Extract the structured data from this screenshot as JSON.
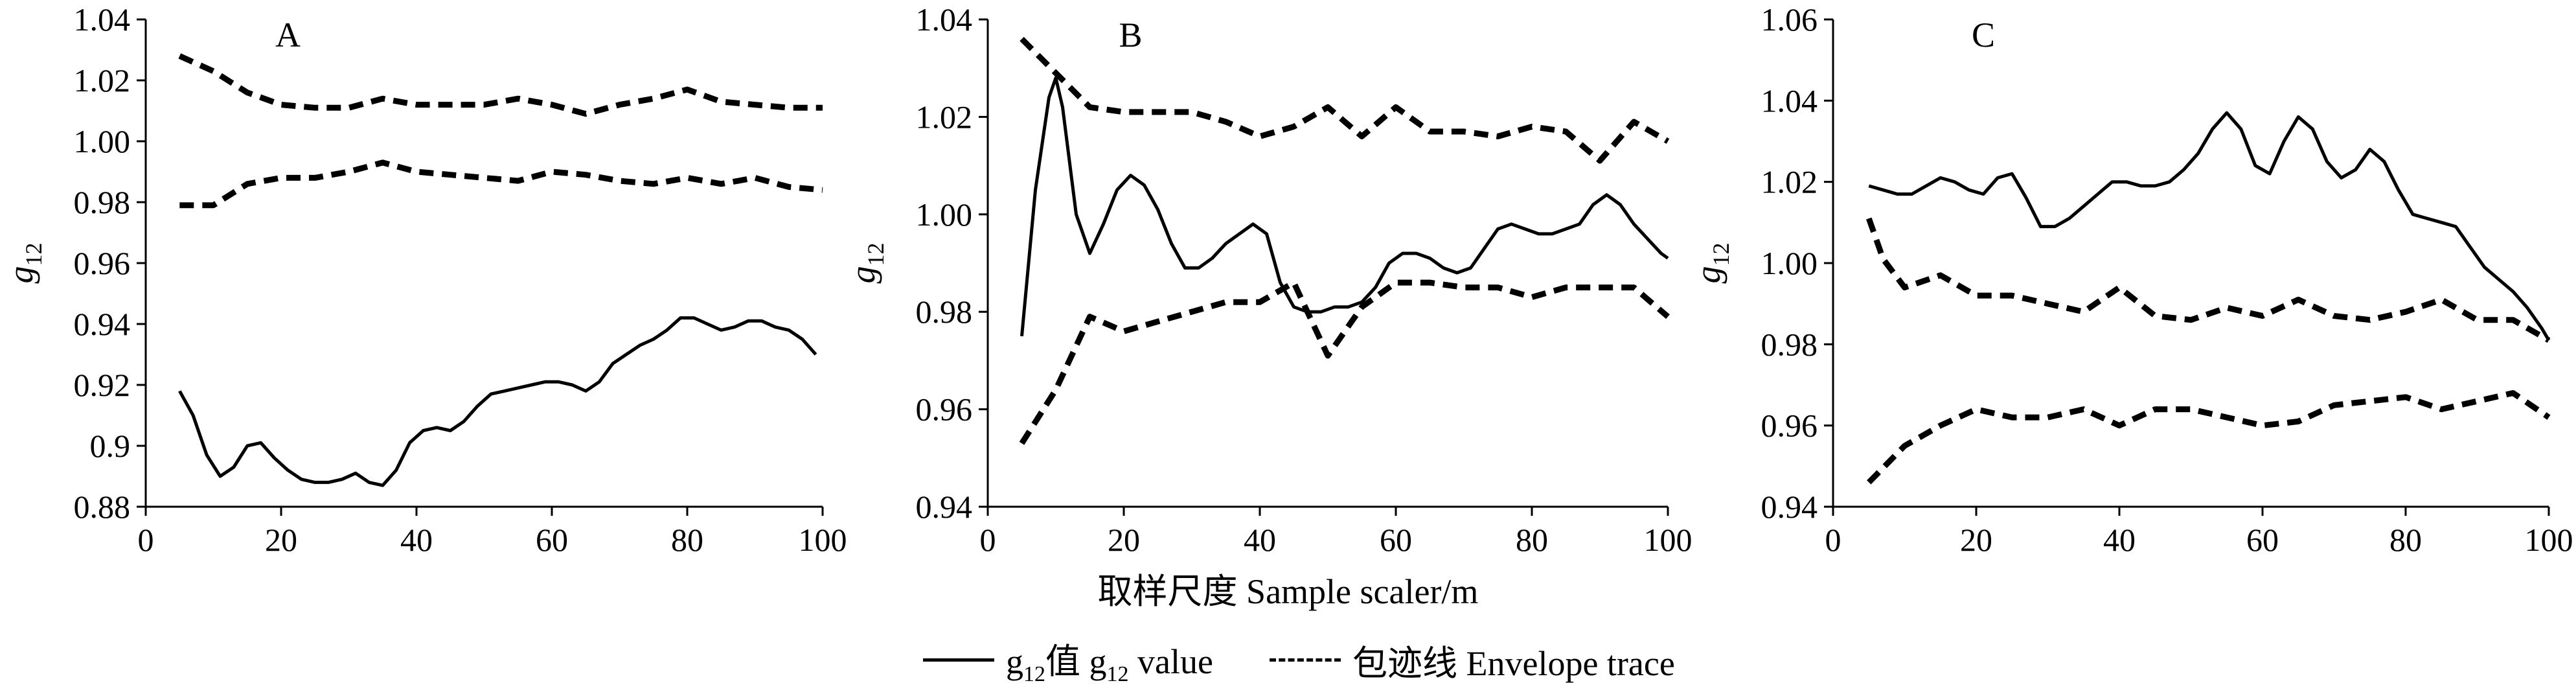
{
  "figure": {
    "xlabel": "取样尺度  Sample scaler/m",
    "legend": [
      {
        "name": "g12值  g12 value",
        "style": "solid"
      },
      {
        "name": "包迹线  Envelope trace",
        "style": "dashed"
      }
    ]
  },
  "chart_data": [
    {
      "type": "line",
      "panel_label": "A",
      "ylabel": "g12",
      "xlim": [
        0,
        100
      ],
      "ylim": [
        0.88,
        1.04
      ],
      "xticks": [
        0,
        20,
        40,
        60,
        80,
        100
      ],
      "yticks": [
        "0.88",
        "0.9",
        "0.92",
        "0.94",
        "0.96",
        "0.98",
        "1.00",
        "1.02",
        "1.04"
      ],
      "series": [
        {
          "name": "g12 value",
          "style": "solid",
          "x": [
            5,
            7,
            9,
            11,
            13,
            15,
            17,
            19,
            21,
            23,
            25,
            27,
            29,
            31,
            33,
            35,
            37,
            39,
            41,
            43,
            45,
            47,
            49,
            51,
            53,
            55,
            57,
            59,
            61,
            63,
            65,
            67,
            69,
            71,
            73,
            75,
            77,
            79,
            81,
            83,
            85,
            87,
            89,
            91,
            93,
            95,
            97,
            99
          ],
          "y": [
            0.918,
            0.91,
            0.897,
            0.89,
            0.893,
            0.9,
            0.901,
            0.896,
            0.892,
            0.889,
            0.888,
            0.888,
            0.889,
            0.891,
            0.888,
            0.887,
            0.892,
            0.901,
            0.905,
            0.906,
            0.905,
            0.908,
            0.913,
            0.917,
            0.918,
            0.919,
            0.92,
            0.921,
            0.921,
            0.92,
            0.918,
            0.921,
            0.927,
            0.93,
            0.933,
            0.935,
            0.938,
            0.942,
            0.942,
            0.94,
            0.938,
            0.939,
            0.941,
            0.941,
            0.939,
            0.938,
            0.935,
            0.93
          ]
        },
        {
          "name": "Envelope trace (upper)",
          "style": "dashed",
          "x": [
            5,
            10,
            15,
            20,
            25,
            30,
            35,
            40,
            45,
            50,
            55,
            60,
            65,
            70,
            75,
            80,
            85,
            90,
            95,
            100
          ],
          "y": [
            1.028,
            1.023,
            1.016,
            1.012,
            1.011,
            1.011,
            1.014,
            1.012,
            1.012,
            1.012,
            1.014,
            1.012,
            1.009,
            1.012,
            1.014,
            1.017,
            1.013,
            1.012,
            1.011,
            1.011
          ]
        },
        {
          "name": "Envelope trace (lower)",
          "style": "dashed",
          "x": [
            5,
            10,
            15,
            20,
            25,
            30,
            35,
            40,
            45,
            50,
            55,
            60,
            65,
            70,
            75,
            80,
            85,
            90,
            95,
            100
          ],
          "y": [
            0.979,
            0.979,
            0.986,
            0.988,
            0.988,
            0.99,
            0.993,
            0.99,
            0.989,
            0.988,
            0.987,
            0.99,
            0.989,
            0.987,
            0.986,
            0.988,
            0.986,
            0.988,
            0.985,
            0.984
          ]
        }
      ]
    },
    {
      "type": "line",
      "panel_label": "B",
      "ylabel": "g12",
      "xlim": [
        0,
        100
      ],
      "ylim": [
        0.94,
        1.04
      ],
      "xticks": [
        0,
        20,
        40,
        60,
        80,
        100
      ],
      "yticks": [
        "0.94",
        "0.96",
        "0.98",
        "1.00",
        "1.02",
        "1.04"
      ],
      "series": [
        {
          "name": "g12 value",
          "style": "solid",
          "x": [
            5,
            7,
            9,
            10,
            11,
            13,
            15,
            17,
            19,
            21,
            23,
            25,
            27,
            29,
            31,
            33,
            35,
            37,
            39,
            41,
            43,
            45,
            47,
            49,
            51,
            53,
            55,
            57,
            59,
            61,
            63,
            65,
            67,
            69,
            71,
            73,
            75,
            77,
            79,
            81,
            83,
            85,
            87,
            89,
            91,
            93,
            95,
            97,
            99,
            100
          ],
          "y": [
            0.975,
            1.005,
            1.024,
            1.028,
            1.022,
            1.0,
            0.992,
            0.998,
            1.005,
            1.008,
            1.006,
            1.001,
            0.994,
            0.989,
            0.989,
            0.991,
            0.994,
            0.996,
            0.998,
            0.996,
            0.986,
            0.981,
            0.98,
            0.98,
            0.981,
            0.981,
            0.982,
            0.985,
            0.99,
            0.992,
            0.992,
            0.991,
            0.989,
            0.988,
            0.989,
            0.993,
            0.997,
            0.998,
            0.997,
            0.996,
            0.996,
            0.997,
            0.998,
            1.002,
            1.004,
            1.002,
            0.998,
            0.995,
            0.992,
            0.991
          ]
        },
        {
          "name": "Envelope trace (upper)",
          "style": "dashed",
          "x": [
            5,
            10,
            15,
            20,
            25,
            30,
            35,
            40,
            45,
            50,
            55,
            60,
            65,
            70,
            75,
            80,
            85,
            90,
            95,
            100
          ],
          "y": [
            1.036,
            1.029,
            1.022,
            1.021,
            1.021,
            1.021,
            1.019,
            1.016,
            1.018,
            1.022,
            1.016,
            1.022,
            1.017,
            1.017,
            1.016,
            1.018,
            1.017,
            1.011,
            1.019,
            1.015
          ]
        },
        {
          "name": "Envelope trace (lower)",
          "style": "dashed",
          "x": [
            5,
            10,
            15,
            20,
            25,
            30,
            35,
            40,
            45,
            50,
            55,
            60,
            65,
            70,
            75,
            80,
            85,
            90,
            95,
            100
          ],
          "y": [
            0.953,
            0.964,
            0.979,
            0.976,
            0.978,
            0.98,
            0.982,
            0.982,
            0.986,
            0.971,
            0.981,
            0.986,
            0.986,
            0.985,
            0.985,
            0.983,
            0.985,
            0.985,
            0.985,
            0.979
          ]
        }
      ]
    },
    {
      "type": "line",
      "panel_label": "C",
      "ylabel": "g12",
      "xlim": [
        0,
        100
      ],
      "ylim": [
        0.94,
        1.06
      ],
      "xticks": [
        0,
        20,
        40,
        60,
        80,
        100
      ],
      "yticks": [
        "0.94",
        "0.96",
        "0.98",
        "1.00",
        "1.02",
        "1.04",
        "1.06"
      ],
      "series": [
        {
          "name": "g12 value",
          "style": "solid",
          "x": [
            5,
            7,
            9,
            11,
            13,
            15,
            17,
            19,
            21,
            23,
            25,
            27,
            29,
            31,
            33,
            35,
            37,
            39,
            41,
            43,
            45,
            47,
            49,
            51,
            53,
            55,
            57,
            59,
            61,
            63,
            65,
            67,
            69,
            71,
            73,
            75,
            77,
            79,
            81,
            83,
            85,
            87,
            89,
            91,
            93,
            95,
            97,
            99,
            100
          ],
          "y": [
            1.019,
            1.018,
            1.017,
            1.017,
            1.019,
            1.021,
            1.02,
            1.018,
            1.017,
            1.021,
            1.022,
            1.016,
            1.009,
            1.009,
            1.011,
            1.014,
            1.017,
            1.02,
            1.02,
            1.019,
            1.019,
            1.02,
            1.023,
            1.027,
            1.033,
            1.037,
            1.033,
            1.024,
            1.022,
            1.03,
            1.036,
            1.033,
            1.025,
            1.021,
            1.023,
            1.028,
            1.025,
            1.018,
            1.012,
            1.011,
            1.01,
            1.009,
            1.004,
            0.999,
            0.996,
            0.993,
            0.989,
            0.984,
            0.981
          ]
        },
        {
          "name": "Envelope trace (upper)",
          "style": "dashed",
          "x": [
            5,
            7,
            10,
            15,
            20,
            25,
            30,
            35,
            40,
            45,
            50,
            55,
            60,
            65,
            70,
            75,
            80,
            85,
            90,
            95,
            100
          ],
          "y": [
            1.011,
            1.001,
            0.994,
            0.997,
            0.992,
            0.992,
            0.99,
            0.988,
            0.994,
            0.987,
            0.986,
            0.989,
            0.987,
            0.991,
            0.987,
            0.986,
            0.988,
            0.991,
            0.986,
            0.986,
            0.981
          ]
        },
        {
          "name": "Envelope trace (lower)",
          "style": "dashed",
          "x": [
            5,
            10,
            15,
            20,
            25,
            30,
            35,
            40,
            45,
            50,
            55,
            60,
            65,
            70,
            75,
            80,
            85,
            90,
            95,
            100
          ],
          "y": [
            0.946,
            0.955,
            0.96,
            0.964,
            0.962,
            0.962,
            0.964,
            0.96,
            0.964,
            0.964,
            0.962,
            0.96,
            0.961,
            0.965,
            0.966,
            0.967,
            0.964,
            0.966,
            0.968,
            0.962
          ]
        }
      ]
    }
  ]
}
